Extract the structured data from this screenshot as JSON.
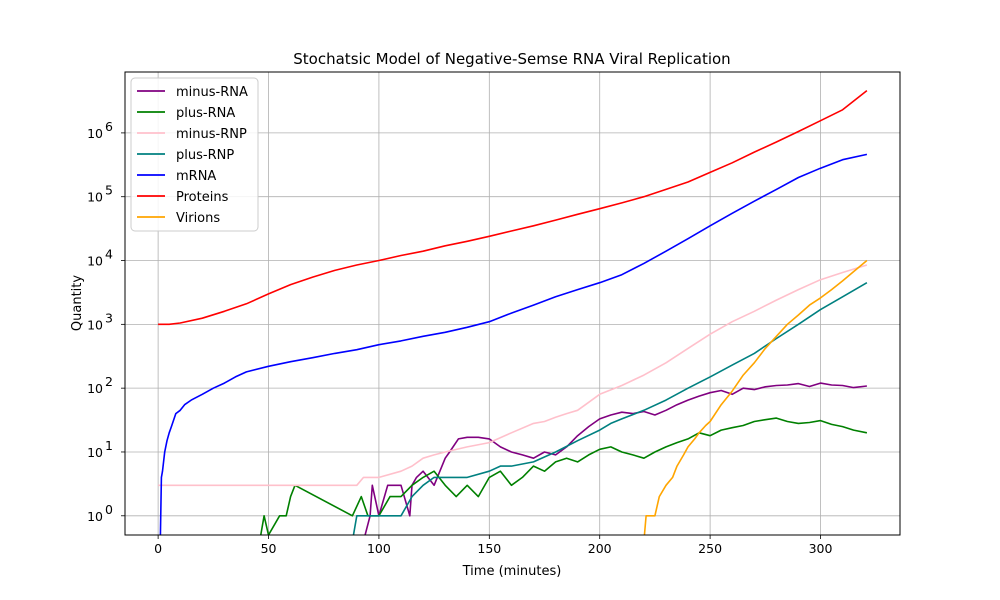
{
  "chart_data": {
    "type": "line",
    "title": "Stochatsic Model of Negative-Semse RNA Viral Replication",
    "xlabel": "Time (minutes)",
    "ylabel": "Quantity",
    "xlim": [
      -15,
      336
    ],
    "ylim": [
      0.5,
      9000000
    ],
    "yscale": "log",
    "grid": true,
    "legend_position": "upper-left",
    "x_ticks": [
      0,
      50,
      100,
      150,
      200,
      250,
      300
    ],
    "y_ticks": [
      {
        "value": 1,
        "base": "10",
        "exp": "0"
      },
      {
        "value": 10,
        "base": "10",
        "exp": "1"
      },
      {
        "value": 100,
        "base": "10",
        "exp": "2"
      },
      {
        "value": 1000,
        "base": "10",
        "exp": "3"
      },
      {
        "value": 10000,
        "base": "10",
        "exp": "4"
      },
      {
        "value": 100000,
        "base": "10",
        "exp": "5"
      },
      {
        "value": 1000000,
        "base": "10",
        "exp": "6"
      }
    ],
    "series": [
      {
        "name": "minus-RNA",
        "color": "#800080",
        "x": [
          93,
          96,
          97,
          100,
          104,
          110,
          114,
          115,
          117,
          120,
          125,
          130,
          132,
          136,
          140,
          145,
          150,
          155,
          160,
          165,
          170,
          175,
          180,
          185,
          190,
          195,
          200,
          205,
          210,
          215,
          220,
          225,
          230,
          235,
          240,
          245,
          250,
          255,
          260,
          265,
          270,
          275,
          280,
          285,
          290,
          295,
          300,
          305,
          310,
          315,
          321
        ],
        "y": [
          0.4,
          1,
          3,
          1,
          3,
          3,
          1,
          3,
          4,
          5,
          3,
          8,
          10,
          16,
          17,
          17,
          16,
          12,
          10,
          9,
          8,
          10,
          9,
          12,
          18,
          25,
          33,
          38,
          42,
          40,
          43,
          38,
          45,
          55,
          65,
          75,
          85,
          92,
          80,
          100,
          95,
          105,
          110,
          112,
          118,
          106,
          120,
          112,
          110,
          102,
          108
        ]
      },
      {
        "name": "plus-RNA",
        "color": "#008000",
        "x": [
          46,
          48,
          50,
          55,
          58,
          60,
          62,
          88,
          92,
          95,
          100,
          105,
          108,
          110,
          115,
          120,
          125,
          130,
          135,
          140,
          145,
          150,
          155,
          160,
          165,
          170,
          175,
          180,
          185,
          190,
          195,
          200,
          205,
          210,
          215,
          220,
          225,
          230,
          235,
          240,
          245,
          250,
          255,
          260,
          265,
          270,
          275,
          280,
          285,
          290,
          295,
          300,
          305,
          310,
          315,
          321
        ],
        "y": [
          0.4,
          1,
          0.5,
          1,
          1,
          2,
          3,
          1,
          2,
          1,
          1,
          2,
          2,
          2,
          3,
          4,
          5,
          3,
          2,
          3,
          2,
          4,
          5,
          3,
          4,
          6,
          5,
          7,
          8,
          7,
          9,
          11,
          12,
          10,
          9,
          8,
          10,
          12,
          14,
          16,
          20,
          18,
          22,
          24,
          26,
          30,
          32,
          34,
          30,
          28,
          29,
          31,
          27,
          25,
          22,
          20
        ]
      },
      {
        "name": "minus-RNP",
        "color": "#ffc0cb",
        "x": [
          0,
          20,
          40,
          60,
          80,
          90,
          93,
          100,
          110,
          115,
          120,
          125,
          130,
          140,
          150,
          160,
          170,
          175,
          180,
          185,
          190,
          195,
          200,
          210,
          220,
          230,
          240,
          250,
          260,
          270,
          280,
          290,
          300,
          310,
          321
        ],
        "y": [
          3,
          3,
          3,
          3,
          3,
          3,
          4,
          4,
          5,
          6,
          8,
          9,
          10,
          12,
          14,
          20,
          28,
          30,
          35,
          40,
          45,
          60,
          80,
          110,
          160,
          250,
          420,
          700,
          1100,
          1600,
          2400,
          3500,
          5000,
          6500,
          8500
        ]
      },
      {
        "name": "plus-RNP",
        "color": "#008080",
        "x": [
          88,
          90,
          100,
          110,
          115,
          120,
          125,
          130,
          140,
          150,
          155,
          160,
          170,
          180,
          190,
          200,
          205,
          210,
          220,
          230,
          240,
          250,
          260,
          270,
          280,
          290,
          300,
          310,
          321
        ],
        "y": [
          0.4,
          1,
          1,
          1,
          2,
          3,
          4,
          4,
          4,
          5,
          6,
          6,
          7,
          10,
          15,
          22,
          28,
          33,
          45,
          65,
          100,
          150,
          230,
          350,
          600,
          1000,
          1700,
          2700,
          4500
        ]
      },
      {
        "name": "mRNA",
        "color": "#0000ff",
        "x": [
          1,
          1.5,
          2,
          3,
          4,
          5,
          6,
          8,
          10,
          12,
          15,
          20,
          25,
          30,
          35,
          40,
          50,
          60,
          70,
          80,
          90,
          100,
          110,
          120,
          130,
          140,
          150,
          160,
          170,
          180,
          190,
          200,
          210,
          220,
          230,
          240,
          250,
          260,
          270,
          280,
          290,
          300,
          310,
          321
        ],
        "y": [
          0.4,
          4,
          5,
          10,
          15,
          20,
          25,
          40,
          45,
          55,
          65,
          80,
          100,
          120,
          150,
          180,
          220,
          260,
          300,
          350,
          400,
          480,
          550,
          650,
          750,
          900,
          1100,
          1500,
          2000,
          2700,
          3500,
          4500,
          6000,
          9000,
          14000,
          22000,
          35000,
          55000,
          85000,
          130000,
          200000,
          280000,
          380000,
          460000
        ]
      },
      {
        "name": "Proteins",
        "color": "#ff0000",
        "x": [
          0,
          5,
          10,
          20,
          30,
          40,
          50,
          60,
          70,
          80,
          90,
          100,
          110,
          120,
          130,
          140,
          150,
          160,
          170,
          180,
          190,
          200,
          210,
          220,
          230,
          240,
          250,
          260,
          270,
          280,
          290,
          300,
          310,
          321
        ],
        "y": [
          1000,
          1000,
          1050,
          1250,
          1600,
          2100,
          3000,
          4200,
          5500,
          7000,
          8500,
          10000,
          12000,
          14000,
          17000,
          20000,
          24000,
          29000,
          35000,
          43000,
          53000,
          65000,
          80000,
          100000,
          130000,
          170000,
          240000,
          340000,
          500000,
          720000,
          1050000,
          1550000,
          2300000,
          4600000
        ]
      },
      {
        "name": "Virions",
        "color": "#ffa500",
        "x": [
          220,
          221,
          222,
          225,
          227,
          230,
          233,
          235,
          238,
          240,
          243,
          245,
          248,
          250,
          255,
          260,
          265,
          270,
          275,
          280,
          285,
          290,
          295,
          300,
          305,
          310,
          315,
          321
        ],
        "y": [
          0.4,
          1,
          1,
          1,
          2,
          3,
          4,
          6,
          9,
          12,
          16,
          20,
          26,
          30,
          55,
          90,
          160,
          250,
          420,
          650,
          1000,
          1400,
          2000,
          2600,
          3500,
          4800,
          6700,
          10000
        ]
      }
    ]
  }
}
